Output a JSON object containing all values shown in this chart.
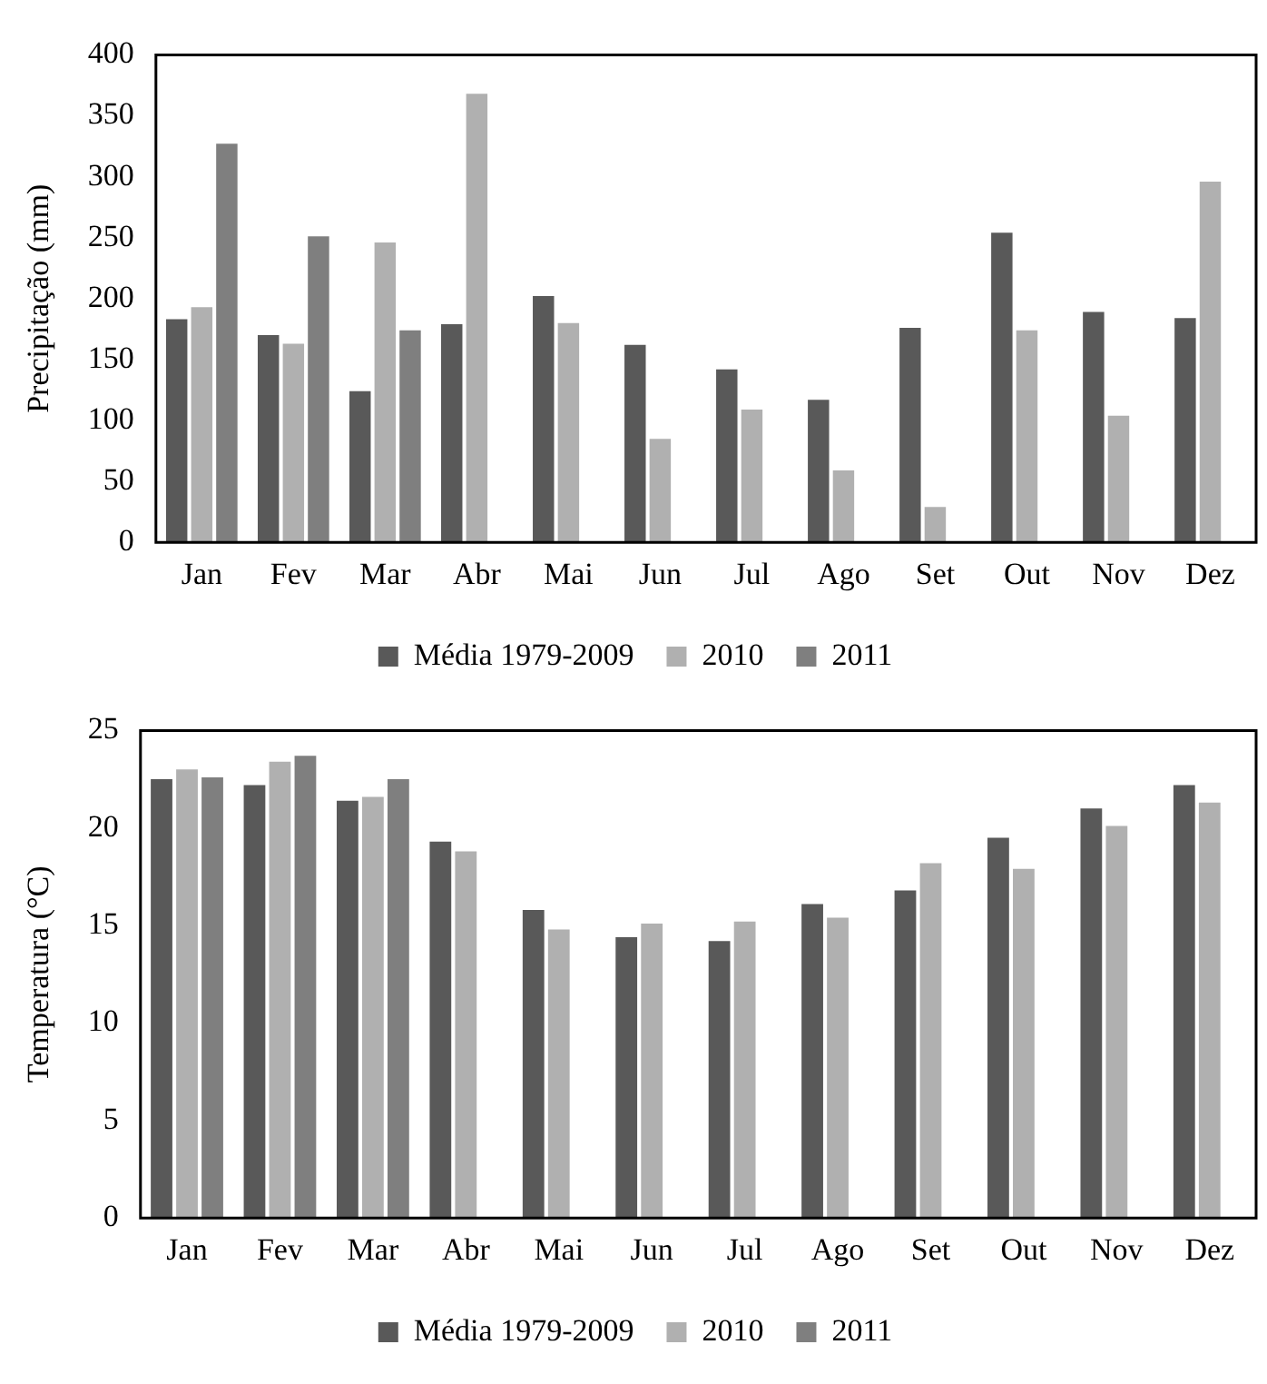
{
  "chart_data": [
    {
      "type": "bar",
      "ylabel": "Precipitação (mm)",
      "categories": [
        "Jan",
        "Fev",
        "Mar",
        "Abr",
        "Mai",
        "Jun",
        "Jul",
        "Ago",
        "Set",
        "Out",
        "Nov",
        "Dez"
      ],
      "ylim": [
        0,
        400
      ],
      "yticks": [
        0,
        50,
        100,
        150,
        200,
        250,
        300,
        350,
        400
      ],
      "grid": false,
      "legend": "bottom",
      "series": [
        {
          "name": "Média 1979-2009",
          "color": "#595959",
          "values": [
            183,
            170,
            124,
            179,
            202,
            162,
            142,
            117,
            176,
            254,
            189,
            184
          ]
        },
        {
          "name": "2010",
          "color": "#b0b0b0",
          "values": [
            193,
            163,
            246,
            368,
            180,
            85,
            109,
            59,
            29,
            174,
            104,
            296
          ]
        },
        {
          "name": "2011",
          "color": "#7f7f7f",
          "values": [
            327,
            251,
            174,
            null,
            null,
            null,
            null,
            null,
            null,
            null,
            null,
            null
          ]
        }
      ]
    },
    {
      "type": "bar",
      "ylabel": "Temperatura (°C)",
      "categories": [
        "Jan",
        "Fev",
        "Mar",
        "Abr",
        "Mai",
        "Jun",
        "Jul",
        "Ago",
        "Set",
        "Out",
        "Nov",
        "Dez"
      ],
      "ylim": [
        0,
        25
      ],
      "yticks": [
        0,
        5,
        10,
        15,
        20,
        25
      ],
      "grid": false,
      "legend": "bottom",
      "series": [
        {
          "name": "Média 1979-2009",
          "color": "#595959",
          "values": [
            22.5,
            22.2,
            21.4,
            19.3,
            15.8,
            14.4,
            14.2,
            16.1,
            16.8,
            19.5,
            21.0,
            22.2
          ]
        },
        {
          "name": "2010",
          "color": "#b0b0b0",
          "values": [
            23.0,
            23.4,
            21.6,
            18.8,
            14.8,
            15.1,
            15.2,
            15.4,
            18.2,
            17.9,
            20.1,
            21.3
          ]
        },
        {
          "name": "2011",
          "color": "#7f7f7f",
          "values": [
            22.6,
            23.7,
            22.5,
            null,
            null,
            null,
            null,
            null,
            null,
            null,
            null,
            null
          ]
        }
      ]
    }
  ]
}
